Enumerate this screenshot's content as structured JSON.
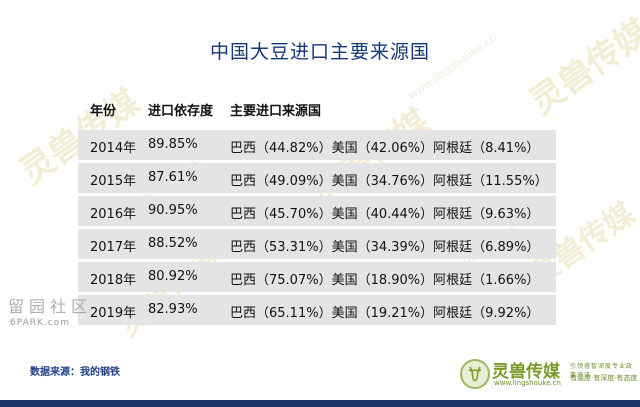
{
  "title": "中国大豆进口主要来源国",
  "table": {
    "headers": [
      "年份",
      "进口依存度",
      "主要进口来源国"
    ],
    "rows": [
      {
        "year": "2014年",
        "dependency": "89.85%",
        "sources": "巴西（44.82%）美国（42.06%）阿根廷（8.41%）"
      },
      {
        "year": "2015年",
        "dependency": "87.61%",
        "sources": "巴西（49.09%）美国（34.76%）阿根廷（11.55%）"
      },
      {
        "year": "2016年",
        "dependency": "90.95%",
        "sources": "巴西（45.70%）美国（40.44%）阿根廷（9.63%）"
      },
      {
        "year": "2017年",
        "dependency": "88.52%",
        "sources": "巴西（53.31%）美国（34.39%）阿根廷（6.89%）"
      },
      {
        "year": "2018年",
        "dependency": "80.92%",
        "sources": "巴西（75.07%）美国（18.90%）阿根廷（1.66%）"
      },
      {
        "year": "2019年",
        "dependency": "82.93%",
        "sources": "巴西（65.11%）美国（19.21%）阿根廷（9.92%）"
      }
    ]
  },
  "source_note": "数据来源：我的钢铁",
  "watermarks": {
    "left_text": "留园社区",
    "left_url": "6PARK.com",
    "brand_text": "灵兽传媒",
    "brand_url": "www.lingshouke.cn"
  },
  "logo": {
    "name": "灵兽传媒",
    "url": "www.lingshouke.cn",
    "tagline1": "引领睿智深度专业政策资讯",
    "tagline2": "有温度·有深度·有态度"
  },
  "colors": {
    "title": "#16387a",
    "row_background": "#e4e4e4",
    "bottom_bar": "#1c3567",
    "logo_green": "#7a9a2a"
  }
}
